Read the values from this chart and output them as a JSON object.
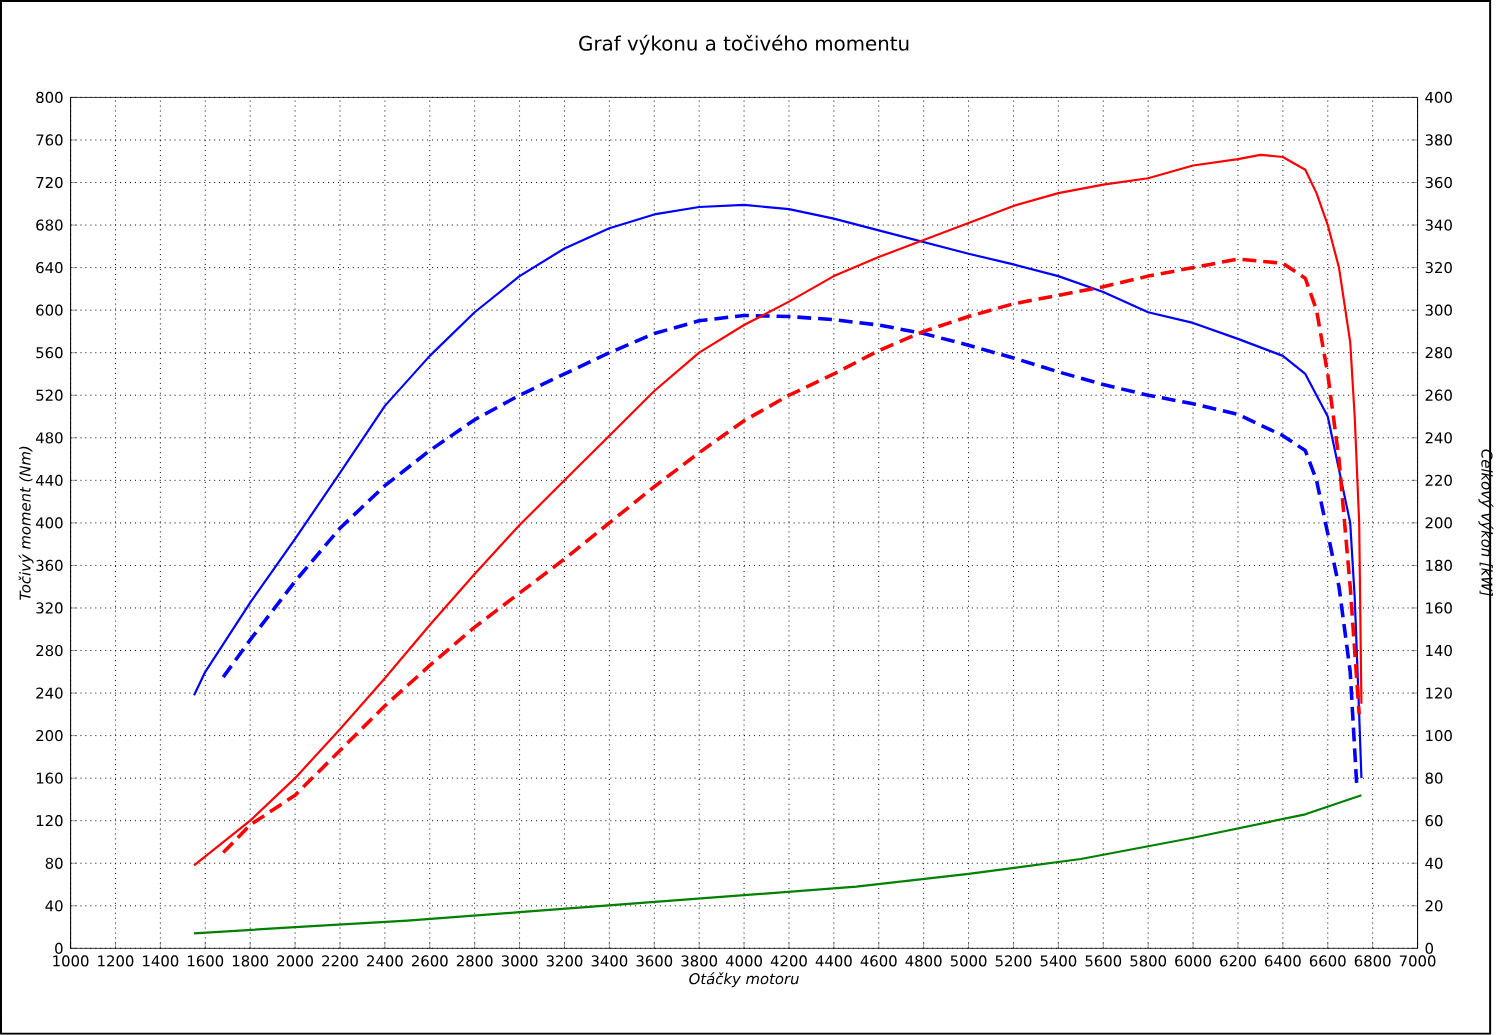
{
  "chart_data": {
    "type": "line",
    "title": "Graf výkonu a točivého momentu",
    "xlabel": "Otáčky motoru",
    "ylabel": "Točivý moment (Nm)",
    "y2label": "Celkový výkon [kW]",
    "xlim": [
      1000,
      7000
    ],
    "xticks": [
      1000,
      1200,
      1400,
      1600,
      1800,
      2000,
      2200,
      2400,
      2600,
      2800,
      3000,
      3200,
      3400,
      3600,
      3800,
      4000,
      4200,
      4400,
      4600,
      4800,
      5000,
      5200,
      5400,
      5600,
      5800,
      6000,
      6200,
      6400,
      6600,
      6800,
      7000
    ],
    "ylim": [
      0,
      800
    ],
    "yticks": [
      0,
      40,
      80,
      120,
      160,
      200,
      240,
      280,
      320,
      360,
      400,
      440,
      480,
      520,
      560,
      600,
      640,
      680,
      720,
      760,
      800
    ],
    "y2lim": [
      0,
      400
    ],
    "y2ticks": [
      0,
      20,
      40,
      60,
      80,
      100,
      120,
      140,
      160,
      180,
      200,
      220,
      240,
      260,
      280,
      300,
      320,
      340,
      360,
      380,
      400
    ],
    "grid": true,
    "series": [
      {
        "color": "#0000ff",
        "line_style": "solid",
        "x": [
          1550,
          1600,
          1800,
          2000,
          2200,
          2400,
          2600,
          2800,
          3000,
          3200,
          3400,
          3600,
          3800,
          4000,
          4200,
          4400,
          4600,
          4800,
          5000,
          5200,
          5400,
          5600,
          5800,
          6000,
          6200,
          6400,
          6500,
          6600,
          6700,
          6720,
          6740,
          6750
        ],
        "values": [
          238,
          260,
          325,
          385,
          447,
          510,
          557,
          598,
          632,
          658,
          677,
          690,
          697,
          699,
          695,
          686,
          675,
          664,
          653,
          643,
          632,
          617,
          598,
          588,
          573,
          557,
          540,
          500,
          400,
          330,
          220,
          160
        ]
      },
      {
        "color": "#0000ff",
        "line_style": "dashed",
        "x": [
          1680,
          1800,
          2000,
          2200,
          2400,
          2600,
          2800,
          3000,
          3200,
          3400,
          3600,
          3800,
          4000,
          4200,
          4400,
          4600,
          4800,
          5000,
          5200,
          5400,
          5600,
          5800,
          6000,
          6200,
          6400,
          6500,
          6550,
          6600,
          6650,
          6700,
          6730
        ],
        "values": [
          255,
          290,
          345,
          395,
          435,
          468,
          497,
          520,
          540,
          560,
          578,
          590,
          595,
          594,
          591,
          586,
          578,
          567,
          555,
          542,
          530,
          520,
          512,
          502,
          482,
          468,
          440,
          390,
          340,
          260,
          150
        ]
      },
      {
        "color": "#ff0000",
        "line_style": "solid",
        "axis": "y2",
        "x": [
          1550,
          1800,
          2000,
          2200,
          2400,
          2600,
          2800,
          3000,
          3200,
          3400,
          3600,
          3800,
          4000,
          4200,
          4400,
          4600,
          4800,
          5000,
          5200,
          5400,
          5600,
          5800,
          6000,
          6200,
          6300,
          6400,
          6500,
          6550,
          6600,
          6650,
          6700,
          6720,
          6740,
          6750
        ],
        "values": [
          39,
          60,
          80,
          103,
          127,
          152,
          176,
          199,
          220,
          241,
          262,
          280,
          293,
          304,
          316,
          325,
          333,
          341,
          349,
          355,
          359,
          362,
          368,
          371,
          373,
          372,
          366,
          355,
          340,
          320,
          285,
          250,
          200,
          115
        ]
      },
      {
        "color": "#ff0000",
        "line_style": "dashed",
        "axis": "y2",
        "x": [
          1680,
          1800,
          2000,
          2200,
          2400,
          2600,
          2800,
          3000,
          3200,
          3400,
          3600,
          3800,
          4000,
          4200,
          4400,
          4600,
          4800,
          5000,
          5200,
          5400,
          5600,
          5800,
          6000,
          6200,
          6300,
          6400,
          6500,
          6550,
          6600,
          6650,
          6700,
          6740
        ],
        "values": [
          45,
          58,
          72,
          93,
          114,
          133,
          151,
          167,
          183,
          200,
          217,
          233,
          248,
          260,
          270,
          281,
          290,
          297,
          303,
          307,
          311,
          316,
          320,
          324,
          323,
          322,
          315,
          300,
          270,
          230,
          170,
          110
        ]
      },
      {
        "color": "#008000",
        "line_style": "solid",
        "axis": "y2",
        "x": [
          1550,
          2000,
          2500,
          3000,
          3500,
          4000,
          4500,
          5000,
          5500,
          6000,
          6500,
          6750
        ],
        "values": [
          7,
          10,
          13,
          17,
          21,
          25,
          29,
          35,
          42,
          52,
          63,
          72
        ]
      }
    ]
  }
}
